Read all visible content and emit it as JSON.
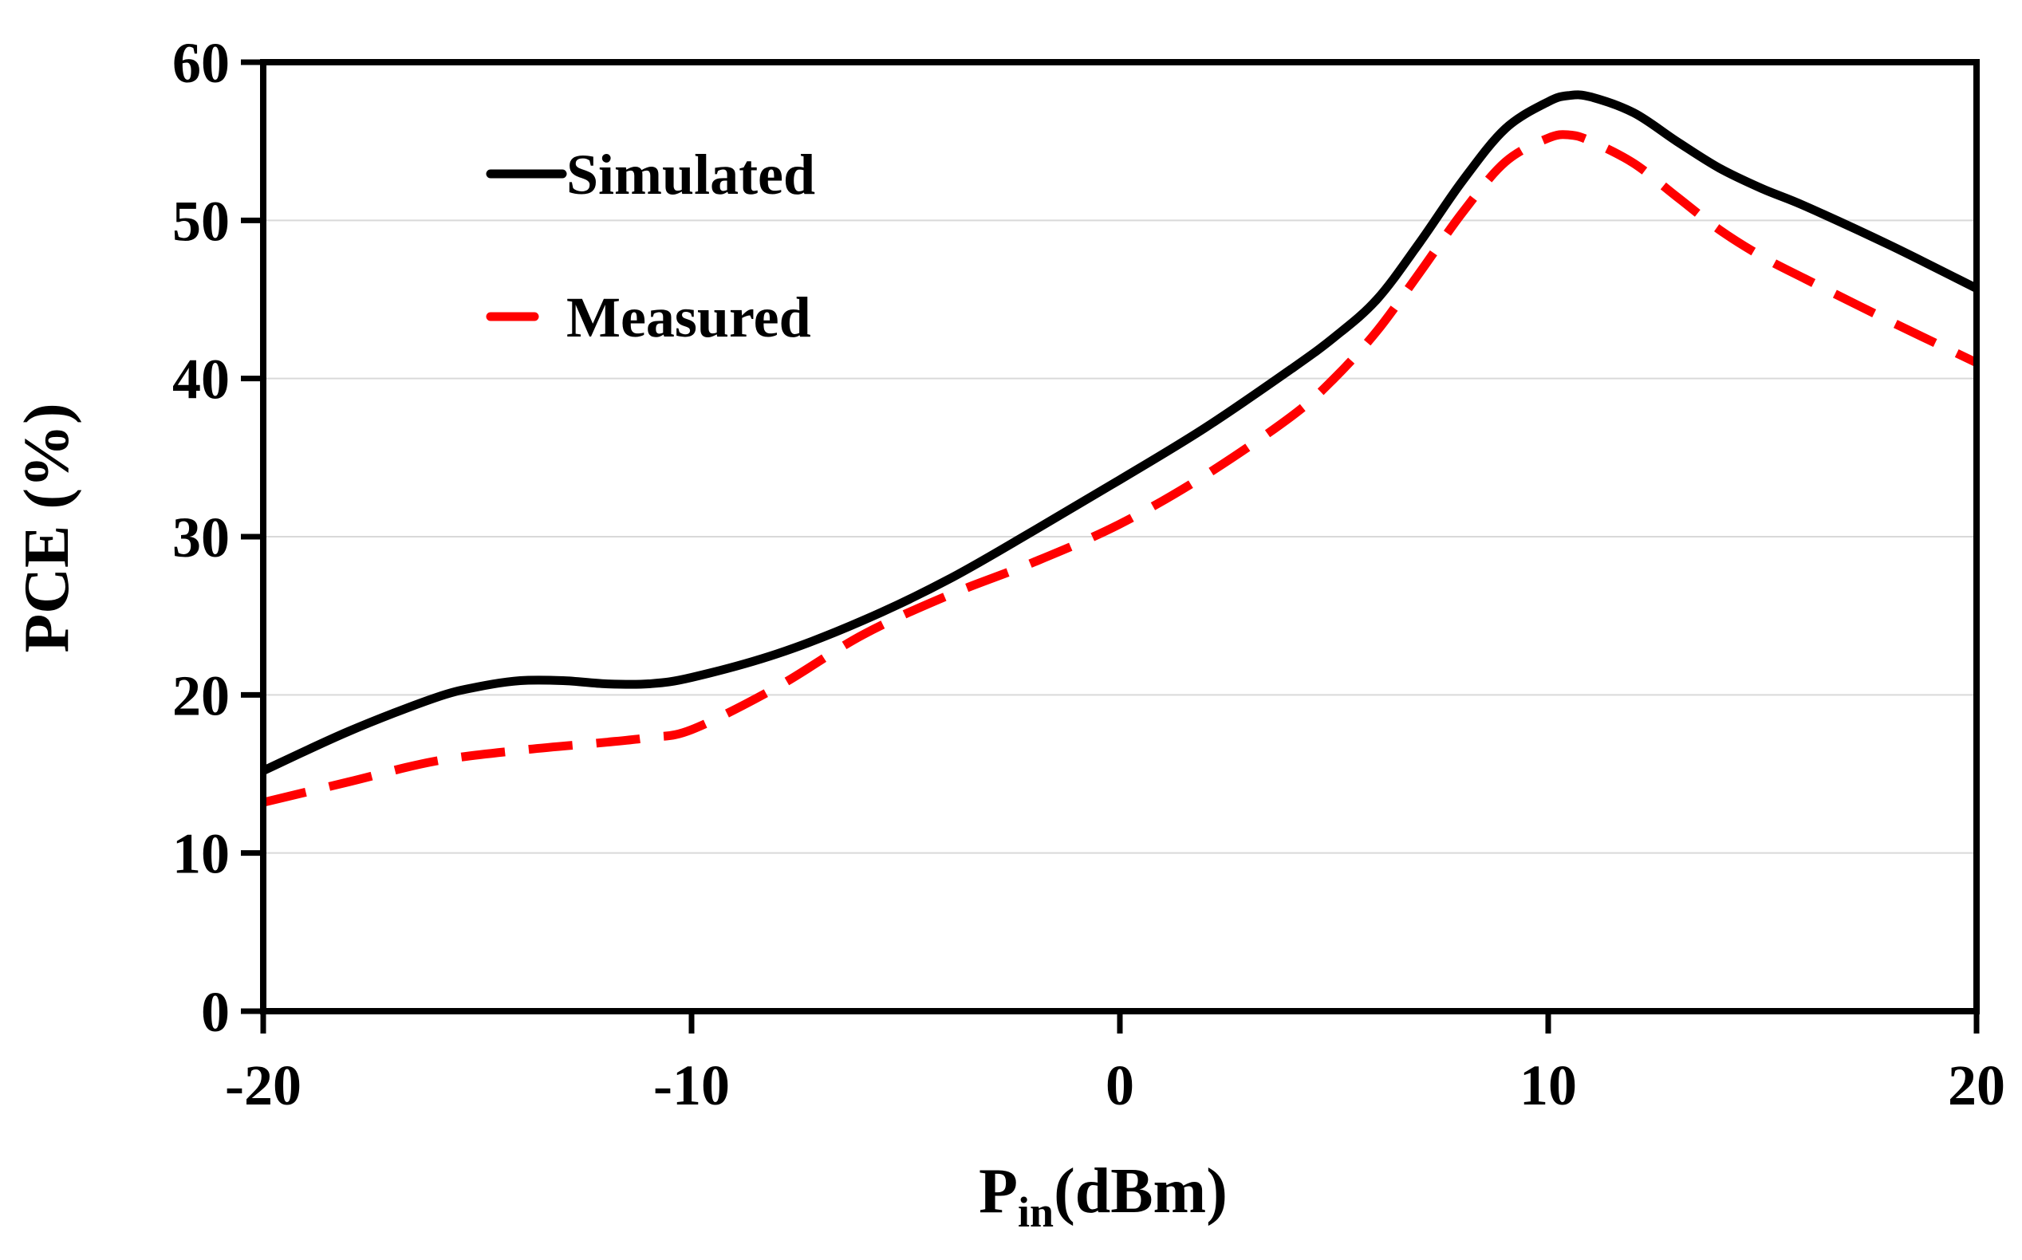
{
  "chart_data": {
    "type": "line",
    "title": "",
    "xlabel": "P",
    "xlabel_subscript": "in",
    "xlabel_suffix": "(dBm)",
    "ylabel": "PCE (%)",
    "xlim": [
      -20,
      20
    ],
    "ylim": [
      0,
      60
    ],
    "xticks": [
      -20,
      -10,
      0,
      10,
      20
    ],
    "yticks": [
      0,
      10,
      20,
      30,
      40,
      50,
      60
    ],
    "xtick_labels": [
      "-20",
      "-10",
      "0",
      "10",
      "20"
    ],
    "ytick_labels": [
      "0",
      "10",
      "20",
      "30",
      "40",
      "50",
      "60"
    ],
    "grid": "horizontal",
    "legend_position": "top-left",
    "series": [
      {
        "name": "Simulated",
        "style": "solid",
        "color": "#000000",
        "x": [
          -20,
          -18,
          -16,
          -15,
          -14,
          -13,
          -12,
          -11,
          -10,
          -8,
          -6,
          -4,
          -2,
          0,
          2,
          4,
          5,
          6,
          7,
          8,
          9,
          10,
          10.5,
          11,
          12,
          13,
          14,
          15,
          16,
          18,
          20
        ],
        "y": [
          15.2,
          17.7,
          19.8,
          20.5,
          20.9,
          20.9,
          20.7,
          20.7,
          21.1,
          22.6,
          24.7,
          27.3,
          30.4,
          33.6,
          36.9,
          40.6,
          42.6,
          45.0,
          48.6,
          52.5,
          55.8,
          57.5,
          57.9,
          57.8,
          56.8,
          55.0,
          53.3,
          52.0,
          50.9,
          48.4,
          45.7
        ]
      },
      {
        "name": "Measured",
        "style": "dashed",
        "color": "#ff0000",
        "x": [
          -20,
          -18,
          -16,
          -14,
          -12,
          -11,
          -10,
          -8,
          -6,
          -4,
          -2,
          0,
          2,
          4,
          5,
          6,
          7,
          8,
          9,
          10,
          10.5,
          11,
          12,
          13,
          14,
          15,
          16,
          18,
          20
        ],
        "y": [
          13.2,
          14.5,
          15.8,
          16.5,
          17.0,
          17.3,
          17.8,
          20.5,
          23.8,
          26.3,
          28.4,
          30.8,
          33.9,
          37.6,
          40.0,
          43.0,
          46.7,
          50.5,
          53.7,
          55.2,
          55.4,
          55.0,
          53.6,
          51.5,
          49.4,
          47.7,
          46.3,
          43.6,
          41.0
        ]
      }
    ]
  }
}
